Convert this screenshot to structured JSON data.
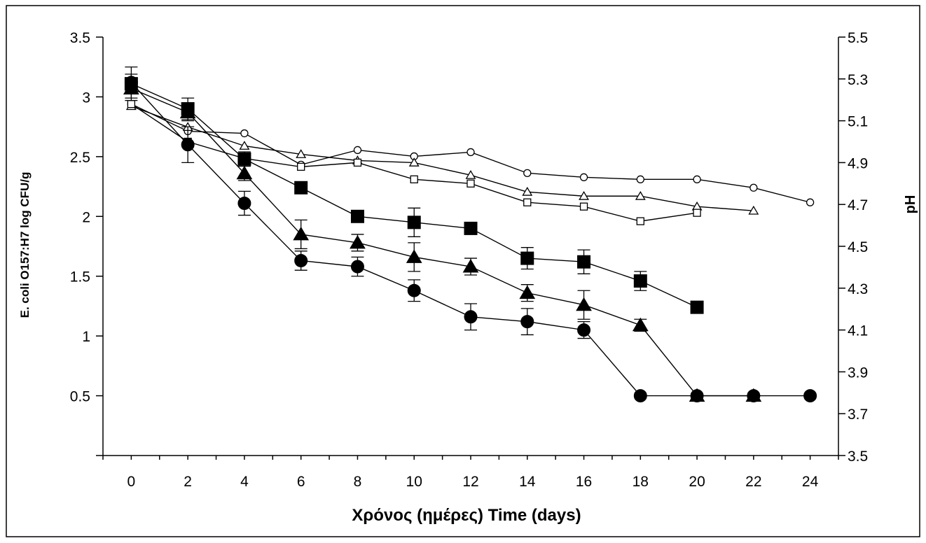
{
  "chart_data": {
    "type": "line",
    "xlabel": "Χρόνος (ημέρες) Time (days)",
    "ylabel": "E. coli O157:H7 log CFU/g",
    "y2label": "pH",
    "xlim": [
      -1,
      25
    ],
    "ylim": [
      0,
      3.5
    ],
    "y2lim": [
      3.5,
      5.5
    ],
    "xticks": [
      "0",
      "2",
      "4",
      "6",
      "8",
      "10",
      "12",
      "14",
      "16",
      "18",
      "20",
      "22",
      "24"
    ],
    "yticks": [
      "0.5",
      "1",
      "1.5",
      "2",
      "2.5",
      "3",
      "3.5"
    ],
    "y2ticks": [
      "3.5",
      "3.7",
      "3.9",
      "4.1",
      "4.3",
      "4.5",
      "4.7",
      "4.9",
      "5.1",
      "5.3",
      "5.5"
    ],
    "grid": false,
    "legend": "none",
    "series": [
      {
        "marker": "circle-filled",
        "axis": "left",
        "x": [
          0,
          2,
          4,
          6,
          8,
          10,
          12,
          14,
          16,
          18,
          20,
          22,
          24
        ],
        "y": [
          3.12,
          2.6,
          2.11,
          1.63,
          1.58,
          1.38,
          1.16,
          1.12,
          1.05,
          0.5,
          0.5,
          0.5,
          0.5
        ],
        "error": [
          0.07,
          0.15,
          0.1,
          0.08,
          0.08,
          0.09,
          0.11,
          0.11,
          0.07,
          0,
          0,
          0,
          0
        ]
      },
      {
        "marker": "triangle-filled",
        "axis": "left",
        "x": [
          0,
          2,
          4,
          6,
          8,
          10,
          12,
          14,
          16,
          18,
          20,
          22
        ],
        "y": [
          3.07,
          2.87,
          2.36,
          1.85,
          1.78,
          1.66,
          1.58,
          1.36,
          1.26,
          1.09,
          0.5,
          0.5
        ],
        "error": [
          0.08,
          0.07,
          0.06,
          0.12,
          0.07,
          0.12,
          0.07,
          0.07,
          0.12,
          0.05,
          0,
          0
        ]
      },
      {
        "marker": "square-filled",
        "axis": "left",
        "x": [
          0,
          2,
          4,
          6,
          8,
          10,
          12,
          14,
          16,
          18,
          20
        ],
        "y": [
          3.11,
          2.9,
          2.48,
          2.24,
          2.0,
          1.95,
          1.9,
          1.65,
          1.62,
          1.46,
          1.24
        ],
        "error": [
          0.14,
          0.09,
          0.06,
          0.05,
          0.05,
          0.12,
          0.05,
          0.09,
          0.1,
          0.08,
          0.05
        ]
      },
      {
        "marker": "circle-open",
        "axis": "right",
        "x": [
          0,
          2,
          4,
          6,
          8,
          10,
          12,
          14,
          16,
          18,
          20,
          22,
          24
        ],
        "y": [
          5.18,
          5.05,
          5.04,
          4.89,
          4.96,
          4.93,
          4.95,
          4.85,
          4.83,
          4.82,
          4.82,
          4.78,
          4.71
        ]
      },
      {
        "marker": "triangle-open",
        "axis": "right",
        "x": [
          0,
          2,
          4,
          6,
          8,
          10,
          12,
          14,
          16,
          18,
          20,
          22
        ],
        "y": [
          5.17,
          5.07,
          4.98,
          4.94,
          4.91,
          4.9,
          4.84,
          4.76,
          4.74,
          4.74,
          4.69,
          4.67
        ]
      },
      {
        "marker": "square-open",
        "axis": "right",
        "x": [
          0,
          2,
          4,
          6,
          8,
          10,
          12,
          14,
          16,
          18,
          20
        ],
        "y": [
          5.18,
          5.0,
          4.92,
          4.88,
          4.9,
          4.82,
          4.8,
          4.71,
          4.69,
          4.62,
          4.66
        ]
      }
    ]
  }
}
